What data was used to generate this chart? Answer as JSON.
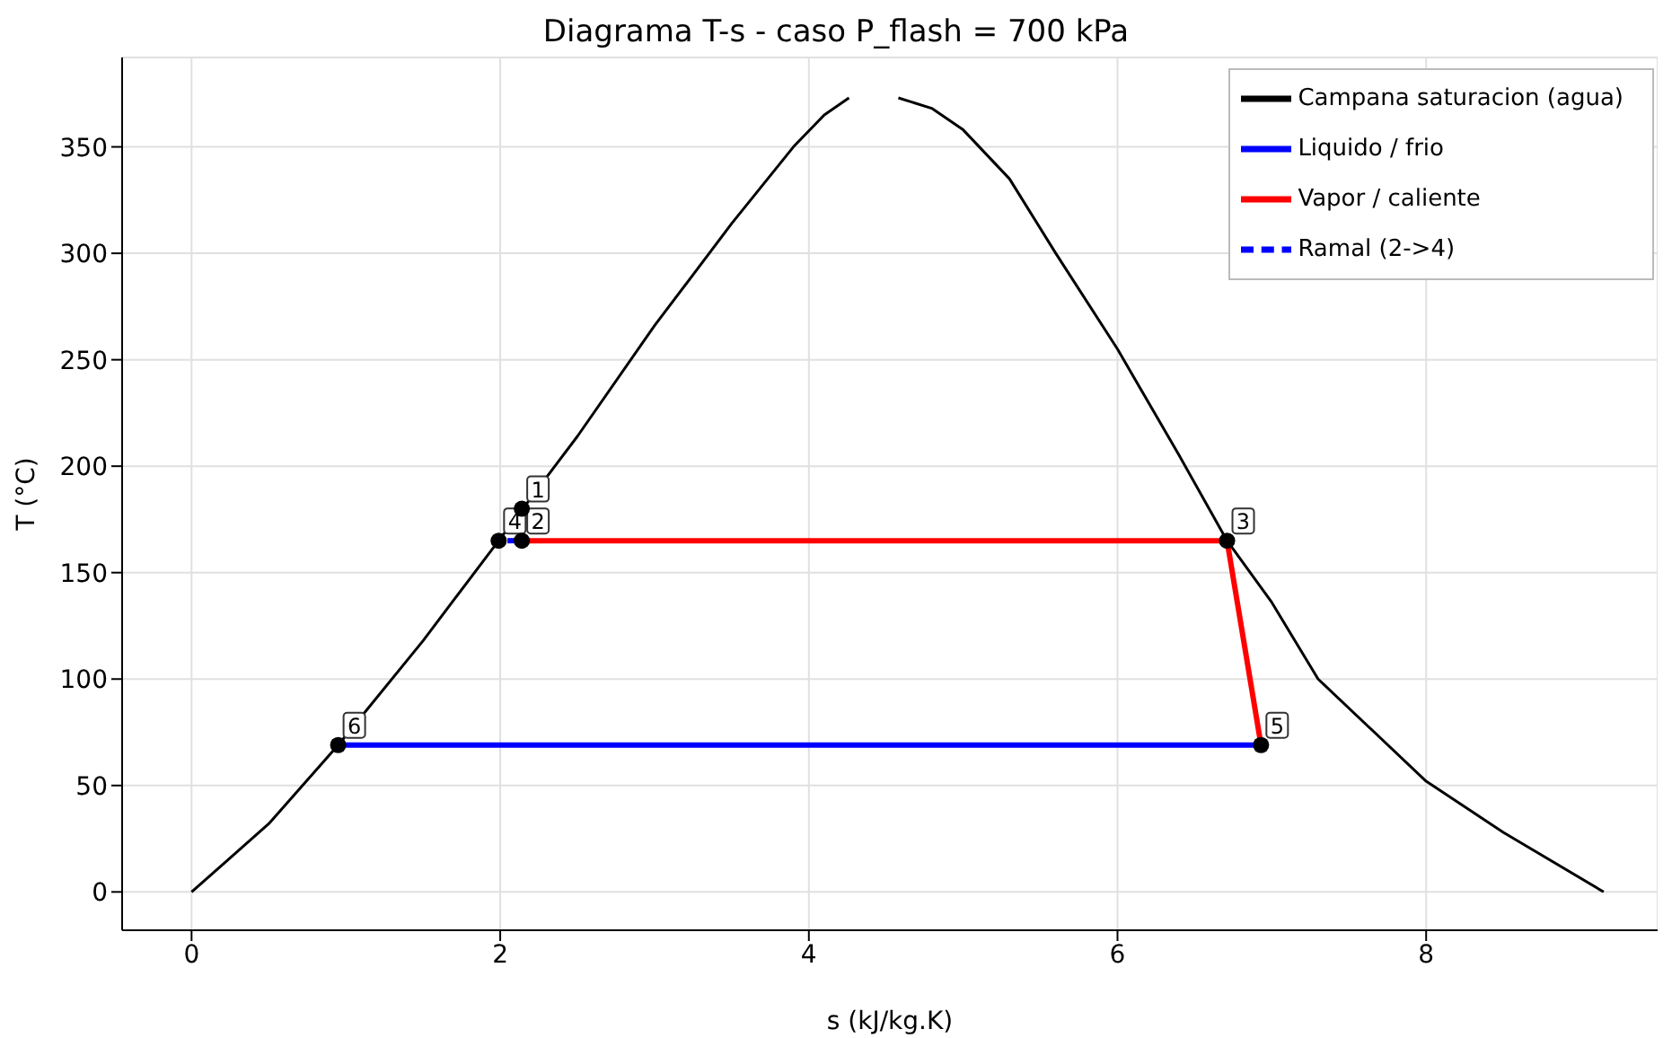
{
  "chart_data": {
    "type": "line",
    "title": "Diagrama T-s - caso P_flash = 700 kPa",
    "xlabel": "s (kJ/kg.K)",
    "ylabel": "T (°C)",
    "xlim": [
      -0.45,
      9.5
    ],
    "ylim": [
      -18,
      392
    ],
    "xticks": [
      0,
      2,
      4,
      6,
      8
    ],
    "yticks": [
      0,
      50,
      100,
      150,
      200,
      250,
      300,
      350
    ],
    "grid": true,
    "legend": "top right",
    "series": [
      {
        "name": "Campana saturacion (agua)",
        "color": "#000000",
        "x": [
          0,
          0.5,
          0.95,
          1.5,
          2.0,
          2.5,
          3.0,
          3.5,
          3.9,
          4.1,
          4.26,
          4.42,
          4.58,
          4.8,
          5.0,
          5.3,
          5.6,
          6.0,
          6.4,
          6.71,
          7.0,
          7.3,
          8.0,
          8.5,
          9.15
        ],
        "values": [
          0,
          32,
          69,
          118,
          166,
          214,
          266,
          314,
          350,
          365,
          373,
          null,
          373,
          368,
          358,
          335,
          300,
          255,
          205,
          165,
          136,
          100,
          52,
          28,
          0
        ]
      },
      {
        "name": "Liquido / frio",
        "color": "#0000ff",
        "x": [
          0.95,
          6.93
        ],
        "values": [
          69,
          69
        ]
      },
      {
        "name": "Vapor / caliente",
        "color": "#ff0000",
        "x": [
          2.14,
          6.71,
          6.93
        ],
        "values": [
          165,
          165,
          69
        ]
      },
      {
        "name": "Ramal (2->4)",
        "color": "#0000ff",
        "line_style": "dashed",
        "x": [
          2.14,
          1.99
        ],
        "values": [
          165,
          165
        ]
      },
      {
        "type": "scatter",
        "color": "#000000",
        "marker": "circle",
        "x": [
          2.14,
          2.14,
          6.71,
          1.99,
          6.93,
          0.95
        ],
        "values": [
          180,
          165,
          165,
          165,
          69,
          69
        ]
      }
    ],
    "annotations": [
      {
        "text": "1",
        "x": 2.14,
        "y": 180
      },
      {
        "text": "2",
        "x": 2.14,
        "y": 165
      },
      {
        "text": "3",
        "x": 6.71,
        "y": 165
      },
      {
        "text": "4",
        "x": 1.99,
        "y": 165
      },
      {
        "text": "5",
        "x": 6.93,
        "y": 69
      },
      {
        "text": "6",
        "x": 0.95,
        "y": 69
      }
    ]
  }
}
